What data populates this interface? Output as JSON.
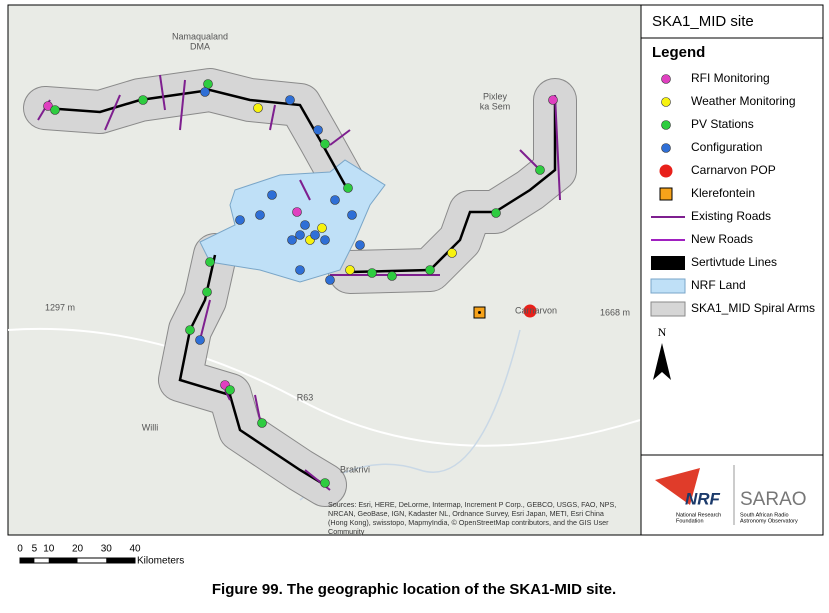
{
  "map": {
    "title": "SKA1_MID site",
    "place_labels": [
      {
        "lines": [
          "Namaqualand",
          "DMA"
        ]
      },
      {
        "lines": [
          "Pixley",
          "ka Sem"
        ]
      },
      {
        "lines": [
          "1297 m"
        ]
      },
      {
        "lines": [
          "1668 m"
        ]
      },
      {
        "lines": [
          "Carnarvon"
        ]
      },
      {
        "lines": [
          "Willi"
        ]
      },
      {
        "lines": [
          "Brakrivi"
        ]
      },
      {
        "lines": [
          "R63"
        ]
      }
    ],
    "attribution": [
      "Sources: Esri, HERE, DeLorme, Intermap, Increment P Corp., GEBCO, USGS, FAO, NPS,",
      "NRCAN, GeoBase, IGN, Kadaster NL, Ordnance Survey, Esri Japan, METI, Esri China",
      "(Hong Kong), swisstopo, MapmyIndia, © OpenStreetMap contributors, and the GIS User",
      "Community"
    ],
    "legend": {
      "heading": "Legend",
      "items": [
        "RFI Monitoring",
        "Weather Monitoring",
        "PV Stations",
        "Configuration",
        "Carnarvon POP",
        "Klerefontein",
        "Existing Roads",
        "New Roads",
        "Sertivtude Lines",
        "NRF Land",
        "SKA1_MID Spiral Arms"
      ]
    },
    "north": "N",
    "logos": {
      "nrf": "NRF",
      "nrf_sub": [
        "National Research",
        "Foundation"
      ],
      "sarao": "SARAO",
      "sarao_sub": [
        "South African Radio",
        "Astronomy Observatory"
      ]
    },
    "scale_bar": {
      "ticks": [
        0,
        5,
        10,
        20,
        30,
        40
      ],
      "unit": "Kilometers"
    },
    "caption": "Figure 99. The geographic location of the SKA1-MID site."
  }
}
